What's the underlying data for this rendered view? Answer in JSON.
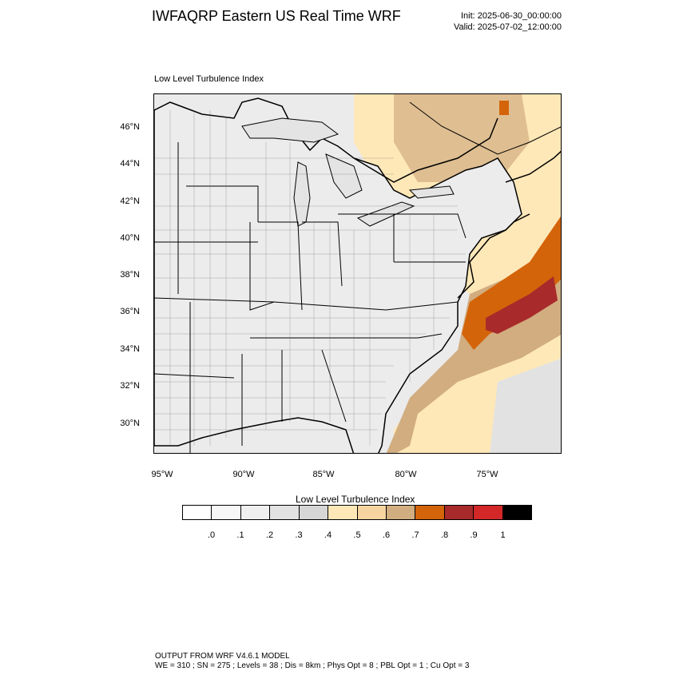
{
  "header": {
    "title": "IWFAQRP Eastern US Real Time WRF",
    "init": "Init: 2025-06-30_00:00:00",
    "valid": "Valid: 2025-07-02_12:00:00"
  },
  "map": {
    "subtitle": "Low Level Turbulence Index",
    "lat_labels": [
      "46°N",
      "44°N",
      "42°N",
      "40°N",
      "38°N",
      "36°N",
      "34°N",
      "32°N",
      "30°N"
    ],
    "lon_labels": [
      "95°W",
      "90°W",
      "85°W",
      "80°W",
      "75°W"
    ]
  },
  "colorbar": {
    "title": "Low Level Turbulence Index",
    "colors": [
      "#ffffff",
      "#f7f7f7",
      "#efefef",
      "#e2e2e2",
      "#d6d6d6",
      "#ffe8b8",
      "#f8d5a0",
      "#d1ad80",
      "#d4640a",
      "#a82a2a",
      "#d42828",
      "#000000"
    ],
    "labels": [
      ".0",
      ".1",
      ".2",
      ".3",
      ".4",
      ".5",
      ".6",
      ".7",
      ".8",
      ".9",
      "1"
    ]
  },
  "footer": {
    "line1": "OUTPUT FROM WRF V4.6.1 MODEL",
    "line2": "WE = 310 ; SN = 275 ; Levels = 38 ; Dis = 8km ; Phys Opt = 8 ; PBL Opt = 1 ; Cu Opt = 3"
  }
}
